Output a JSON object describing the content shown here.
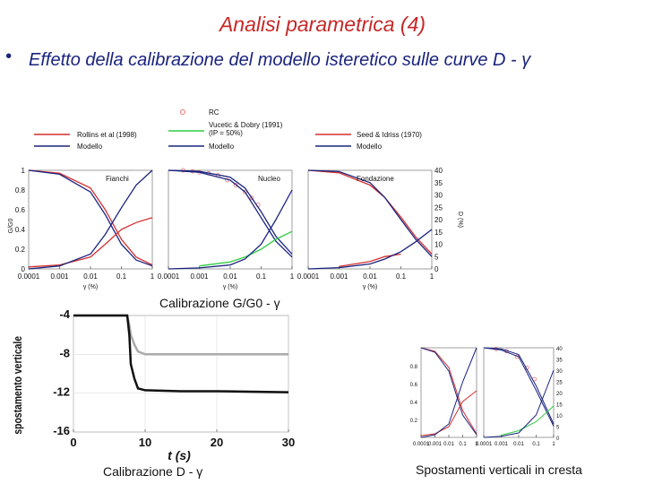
{
  "slide": {
    "title": "Analisi parametrica (4)",
    "bullet_symbol": "•",
    "bullet_text": "Effetto della calibrazione del modello isteretico sulle curve D - γ",
    "caption_top": "Calibrazione  G/G0 - γ",
    "caption_bottom_left": "Calibrazione D - γ",
    "caption_bottom_right": "Spostamenti verticali in cresta"
  },
  "colors": {
    "title": "#c62828",
    "text": "#1a237e",
    "red": "#d32f2f",
    "blue": "#1a237e",
    "green": "#2ecc40",
    "rc": "#e57373"
  },
  "legend": {
    "rc": "RC",
    "rollins": "Rollins et al (1998)",
    "modello": "Modello",
    "vucetic_1": "Vucetic & Dobry (1991)",
    "vucetic_2": "(IP = 50%)",
    "seed": "Seed & Idriss (1970)",
    "modello2": "Modello",
    "modello3": "Modello"
  },
  "chart_data": [
    {
      "type": "line",
      "title": "Fianchi",
      "xlabel": "γ (%)",
      "ylabel": "G/G0",
      "x_scale": "log",
      "xlim": [
        0.0001,
        1
      ],
      "ylim": [
        0,
        1
      ],
      "x_ticks": [
        "0.0001",
        "0.001",
        "0.01",
        "0.1",
        "1"
      ],
      "y_ticks": [
        "0",
        "0.2",
        "0.4",
        "0.6",
        "0.8",
        "1"
      ],
      "series": [
        {
          "name": "Rollins et al (1998) G/G0",
          "color": "red",
          "x": [
            0.0001,
            0.001,
            0.01,
            0.03,
            0.1,
            0.3,
            1
          ],
          "y": [
            1.0,
            0.97,
            0.82,
            0.6,
            0.3,
            0.12,
            0.04
          ]
        },
        {
          "name": "Modello G/G0",
          "color": "blue",
          "x": [
            0.0001,
            0.001,
            0.01,
            0.03,
            0.1,
            0.3,
            1
          ],
          "y": [
            1.0,
            0.96,
            0.78,
            0.55,
            0.25,
            0.09,
            0.03
          ]
        },
        {
          "name": "Rollins et al (1998) D",
          "color": "red",
          "x": [
            0.0001,
            0.001,
            0.01,
            0.03,
            0.1,
            0.3,
            1
          ],
          "y": [
            0.02,
            0.04,
            0.12,
            0.25,
            0.4,
            0.47,
            0.52
          ]
        },
        {
          "name": "Modello D",
          "color": "blue",
          "x": [
            0.0001,
            0.001,
            0.01,
            0.03,
            0.1,
            0.3,
            1
          ],
          "y": [
            0.0,
            0.03,
            0.15,
            0.35,
            0.62,
            0.85,
            1.0
          ]
        }
      ]
    },
    {
      "type": "line",
      "title": "Nucleo",
      "xlabel": "γ (%)",
      "x_scale": "log",
      "xlim": [
        0.0001,
        1
      ],
      "ylim": [
        0,
        1
      ],
      "x_ticks": [
        "0.0001",
        "0.001",
        "0.01",
        "0.1",
        "1"
      ],
      "series": [
        {
          "name": "RC",
          "color": "rc",
          "marker": "circle",
          "x": [
            0.0003,
            0.0006,
            0.001,
            0.002,
            0.004,
            0.008,
            0.015,
            0.03,
            0.05,
            0.08
          ],
          "y": [
            1.0,
            0.99,
            0.98,
            0.97,
            0.95,
            0.9,
            0.85,
            0.78,
            0.72,
            0.65
          ]
        },
        {
          "name": "Vucetic & Dobry (1991) (IP = 50%) G/G0",
          "color": "blue",
          "x": [
            0.0001,
            0.001,
            0.01,
            0.03,
            0.1,
            0.3,
            1
          ],
          "y": [
            1.0,
            0.99,
            0.93,
            0.82,
            0.58,
            0.33,
            0.15
          ]
        },
        {
          "name": "Modello G/G0",
          "color": "blue",
          "x": [
            0.0001,
            0.001,
            0.01,
            0.03,
            0.1,
            0.3,
            1
          ],
          "y": [
            1.0,
            0.98,
            0.9,
            0.78,
            0.52,
            0.28,
            0.12
          ]
        },
        {
          "name": "Vucetic & Dobry (1991) D",
          "color": "green",
          "x": [
            0.001,
            0.01,
            0.03,
            0.1,
            0.3,
            1
          ],
          "y": [
            0.03,
            0.07,
            0.12,
            0.2,
            0.3,
            0.38
          ]
        },
        {
          "name": "Modello D",
          "color": "blue",
          "x": [
            0.0001,
            0.001,
            0.01,
            0.03,
            0.1,
            0.3,
            1
          ],
          "y": [
            0.0,
            0.01,
            0.04,
            0.1,
            0.25,
            0.5,
            0.8
          ]
        }
      ]
    },
    {
      "type": "line",
      "title": "Fondazione",
      "xlabel": "γ (%)",
      "ylabel": "D (%)",
      "x_scale": "log",
      "xlim": [
        0.0001,
        1
      ],
      "ylim": [
        0,
        40
      ],
      "x_ticks": [
        "0.0001",
        "0.001",
        "0.01",
        "0.1",
        "1"
      ],
      "y_ticks": [
        "0",
        "5",
        "10",
        "15",
        "20",
        "25",
        "30",
        "35",
        "40"
      ],
      "series": [
        {
          "name": "Seed & Idriss (1970) G/G0",
          "color": "red",
          "x": [
            0.0001,
            0.001,
            0.01,
            0.03,
            0.1,
            0.3,
            1
          ],
          "y": [
            40,
            39,
            34,
            29,
            21,
            13,
            6
          ]
        },
        {
          "name": "Modello G/G0",
          "color": "blue",
          "x": [
            0.0001,
            0.001,
            0.01,
            0.03,
            0.1,
            0.3,
            1
          ],
          "y": [
            40,
            39.5,
            35,
            29,
            20,
            12,
            5
          ]
        },
        {
          "name": "Seed & Idriss (1970) D",
          "color": "red",
          "x": [
            0.001,
            0.01,
            0.03,
            0.1
          ],
          "y": [
            1,
            3,
            5,
            6
          ]
        },
        {
          "name": "Modello D",
          "color": "blue",
          "x": [
            0.0001,
            0.001,
            0.01,
            0.03,
            0.1,
            0.3,
            1
          ],
          "y": [
            0,
            0.5,
            2,
            4,
            7,
            11,
            16
          ]
        }
      ]
    },
    {
      "type": "line",
      "xlabel": "t (s)",
      "ylabel": "spostamento verticale",
      "xlim": [
        0,
        30
      ],
      "ylim": [
        -16,
        -4
      ],
      "x_ticks": [
        "0",
        "10",
        "20",
        "30"
      ],
      "y_ticks": [
        "-4",
        "-8",
        "-12",
        "-16"
      ],
      "series": [
        {
          "name": "Calibrazione G/G0 - γ",
          "color": "gray",
          "x": [
            0,
            7.5,
            7.8,
            8,
            8.5,
            9,
            10,
            30
          ],
          "y": [
            -4,
            -4,
            -5,
            -6,
            -7,
            -7.7,
            -8,
            -8
          ]
        },
        {
          "name": "Calibrazione D - γ",
          "color": "black",
          "x": [
            0,
            7.5,
            7.8,
            8,
            8.5,
            9,
            10,
            15,
            20,
            30
          ],
          "y": [
            -4,
            -4,
            -6,
            -9,
            -10.5,
            -11.5,
            -11.7,
            -11.8,
            -11.8,
            -11.9
          ]
        }
      ]
    },
    {
      "type": "line",
      "xlabel": "γ (%)",
      "x_scale": "log",
      "xlim": [
        0.0001,
        1
      ],
      "ylim": [
        0,
        1
      ],
      "x_ticks": [
        "0.0001",
        "0.001",
        "0.01",
        "0.1",
        "1"
      ],
      "y_ticks": [
        "0.2",
        "0.4",
        "0.6",
        "0.8"
      ],
      "series": [
        {
          "name": "Rollins G/G0",
          "color": "red",
          "x": [
            0.0001,
            0.001,
            0.01,
            0.1,
            1
          ],
          "y": [
            1,
            0.96,
            0.78,
            0.3,
            0.04
          ]
        },
        {
          "name": "Modello G/G0",
          "color": "blue",
          "x": [
            0.0001,
            0.001,
            0.01,
            0.1,
            1
          ],
          "y": [
            1,
            0.95,
            0.74,
            0.25,
            0.03
          ]
        },
        {
          "name": "Rollins D",
          "color": "red",
          "x": [
            0.0001,
            0.001,
            0.01,
            0.1,
            1
          ],
          "y": [
            0.02,
            0.04,
            0.12,
            0.4,
            0.52
          ]
        },
        {
          "name": "Modello D",
          "color": "blue",
          "x": [
            0.0001,
            0.001,
            0.01,
            0.1,
            1
          ],
          "y": [
            0,
            0.03,
            0.15,
            0.62,
            1.0
          ]
        }
      ]
    },
    {
      "type": "line",
      "xlabel": "γ (%)",
      "x_scale": "log",
      "xlim": [
        0.0001,
        1
      ],
      "ylim": [
        0,
        40
      ],
      "x_ticks": [
        "0.0001",
        "0.001",
        "0.01",
        "0.1",
        "1"
      ],
      "y_ticks": [
        "0",
        "5",
        "10",
        "15",
        "20",
        "25",
        "30",
        "35",
        "40"
      ],
      "series": [
        {
          "name": "RC",
          "color": "rc",
          "marker": "circle",
          "x": [
            0.0005,
            0.002,
            0.008,
            0.03,
            0.08
          ],
          "y": [
            39.5,
            38.5,
            36,
            31,
            26
          ]
        },
        {
          "name": "Vucetic G/G0",
          "color": "blue",
          "x": [
            0.0001,
            0.001,
            0.01,
            0.1,
            1
          ],
          "y": [
            40,
            39.5,
            37,
            23,
            6
          ]
        },
        {
          "name": "Modello G/G0",
          "color": "blue",
          "x": [
            0.0001,
            0.001,
            0.01,
            0.1,
            1
          ],
          "y": [
            40,
            39,
            36,
            21,
            5
          ]
        },
        {
          "name": "Vucetic D",
          "color": "green",
          "x": [
            0.001,
            0.01,
            0.1,
            1
          ],
          "y": [
            1,
            3,
            7,
            14
          ]
        },
        {
          "name": "Modello D",
          "color": "blue",
          "x": [
            0.0001,
            0.001,
            0.01,
            0.1,
            1
          ],
          "y": [
            0,
            0.5,
            2,
            10,
            30
          ]
        }
      ]
    }
  ]
}
